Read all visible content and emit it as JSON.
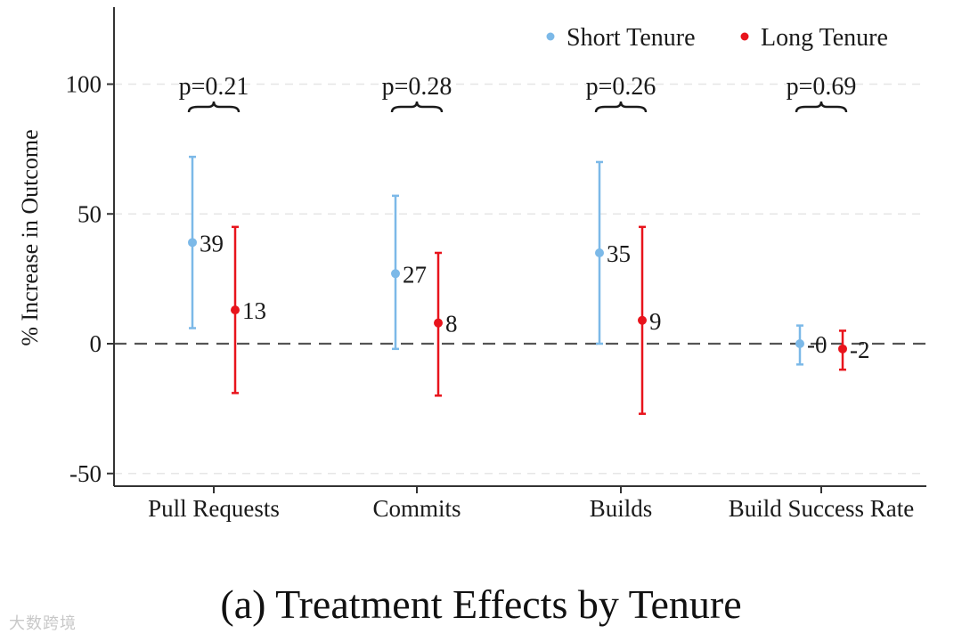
{
  "chart_data": {
    "type": "scatter",
    "subtype": "point-estimate-with-error-bars",
    "title": "(a) Treatment Effects by Tenure",
    "xlabel": "",
    "ylabel": "% Increase in Outcome",
    "ylim": [
      -55,
      128
    ],
    "yticks": [
      -50,
      0,
      50,
      100
    ],
    "ytick_labels": [
      "-50",
      "0",
      "50",
      "100"
    ],
    "grid": "horizontal dashed",
    "reference_line": 0,
    "legend_position": "top-right",
    "categories": [
      "Pull Requests",
      "Commits",
      "Builds",
      "Build Success Rate"
    ],
    "series": [
      {
        "name": "Short Tenure",
        "color": "#7cb9e8",
        "values": [
          39,
          27,
          35,
          0
        ],
        "labels": [
          "39",
          "27",
          "35",
          "-0"
        ],
        "ci_low": [
          6,
          -2,
          0,
          -8
        ],
        "ci_high": [
          72,
          57,
          70,
          7
        ]
      },
      {
        "name": "Long Tenure",
        "color": "#e8141c",
        "values": [
          13,
          8,
          9,
          -2
        ],
        "labels": [
          "13",
          "8",
          "9",
          "-2"
        ],
        "ci_low": [
          -19,
          -20,
          -27,
          -10
        ],
        "ci_high": [
          45,
          35,
          45,
          5
        ]
      }
    ],
    "annotations": [
      "p=0.21",
      "p=0.28",
      "p=0.26",
      "p=0.69"
    ]
  },
  "watermark": "大数跨境"
}
